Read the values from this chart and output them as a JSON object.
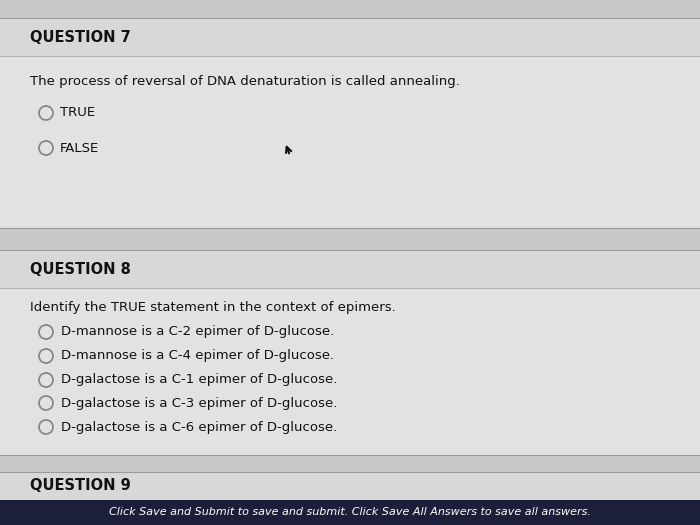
{
  "fig_w": 7.0,
  "fig_h": 5.25,
  "dpi": 100,
  "bg_color": "#c8c8c8",
  "q_panel_color": "#e2e2e2",
  "q_header_color": "#d8d8d8",
  "separator_color": "#999999",
  "text_color": "#111111",
  "radio_edge_color": "#888888",
  "footer_bg": "#1c1f3a",
  "footer_text_color": "#ffffff",
  "q7_label": "QUESTION 7",
  "q7_question": "The process of reversal of DNA denaturation is called annealing.",
  "q7_options": [
    "TRUE",
    "FALSE"
  ],
  "q8_label": "QUESTION 8",
  "q8_question": "Identify the TRUE statement in the context of epimers.",
  "q8_options": [
    "D-mannose is a C-2 epimer of D-glucose.",
    "D-mannose is a C-4 epimer of D-glucose.",
    "D-galactose is a C-1 epimer of D-glucose.",
    "D-galactose is a C-3 epimer of D-glucose.",
    "D-galactose is a C-6 epimer of D-glucose."
  ],
  "q9_label": "QUESTION 9",
  "footer_text": "Click Save and Submit to save and submit. Click Save All Answers to save all answers."
}
